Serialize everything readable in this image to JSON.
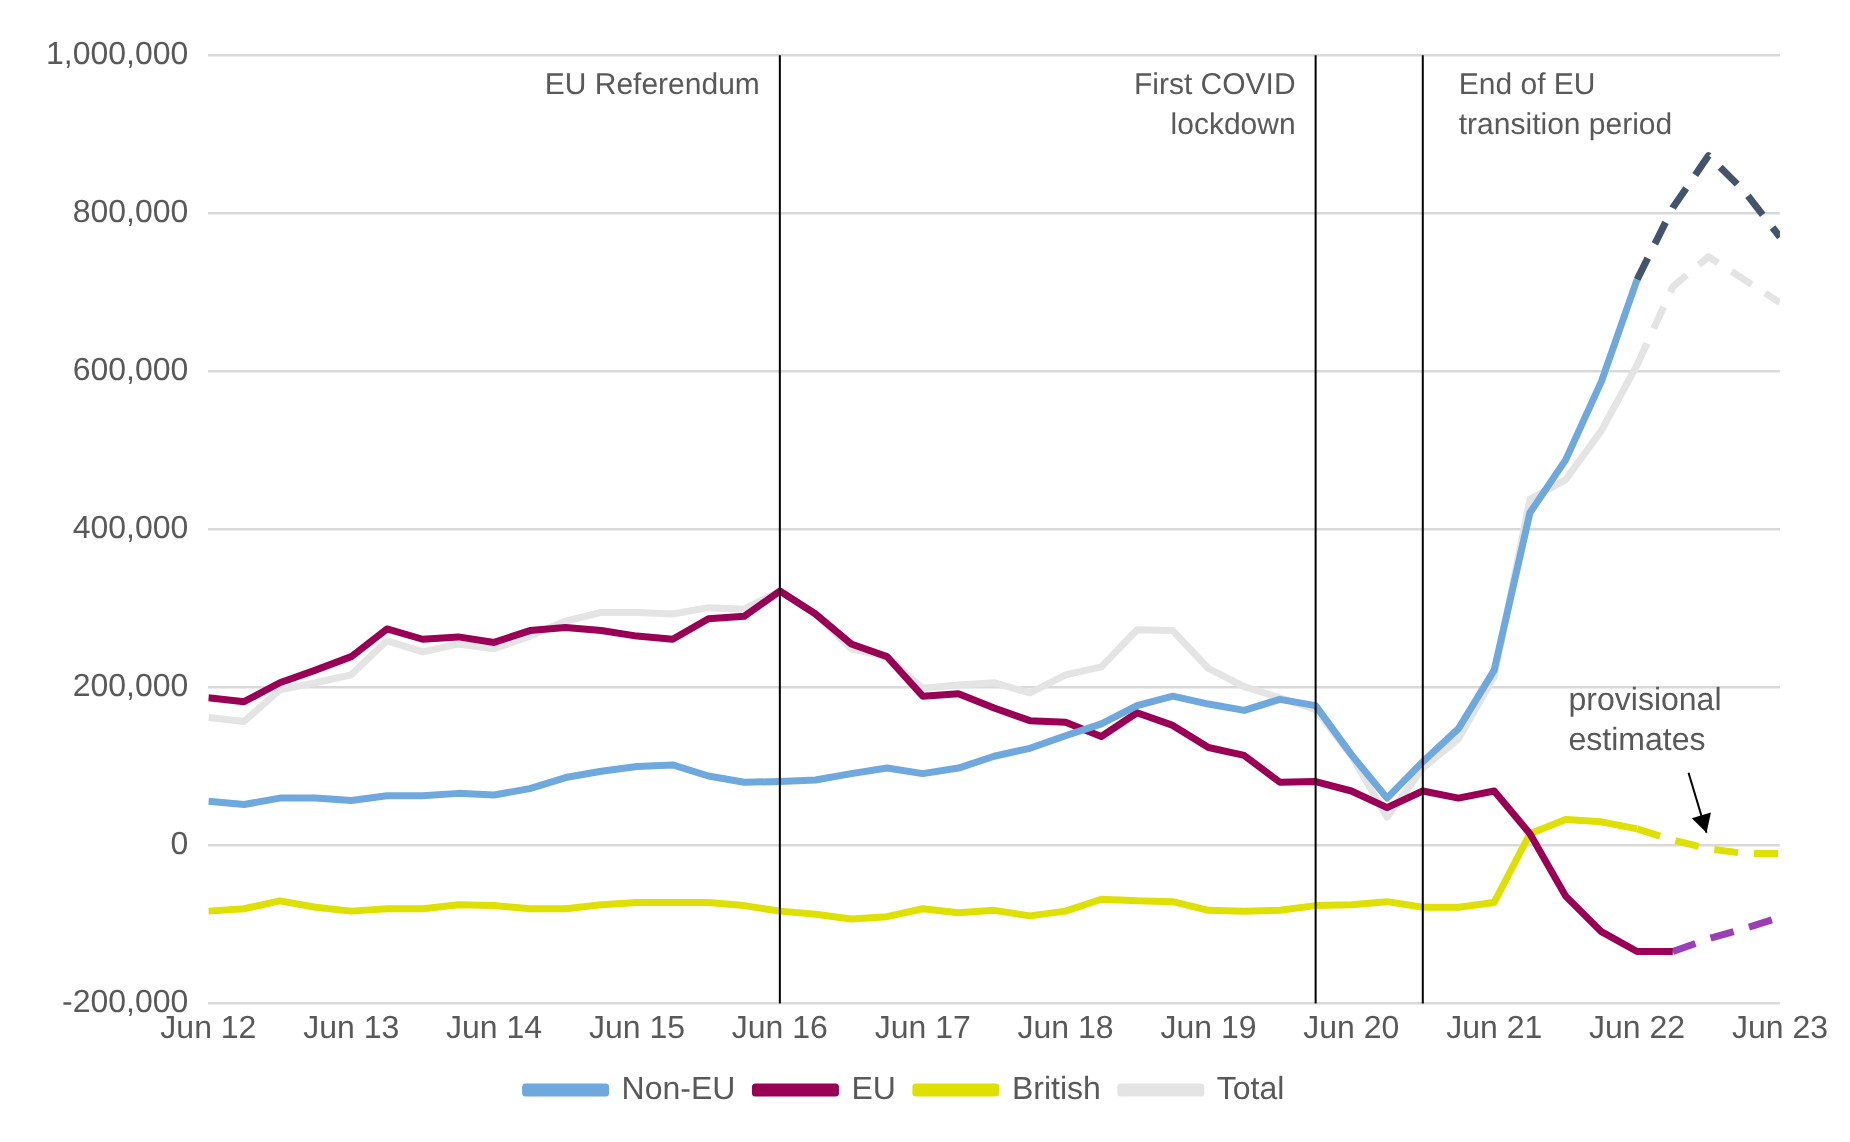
{
  "chart_data": {
    "type": "line",
    "x": [
      "2012-06",
      "2012-09",
      "2012-12",
      "2013-03",
      "2013-06",
      "2013-09",
      "2013-12",
      "2014-03",
      "2014-06",
      "2014-09",
      "2014-12",
      "2015-03",
      "2015-06",
      "2015-09",
      "2015-12",
      "2016-03",
      "2016-06",
      "2016-09",
      "2016-12",
      "2017-03",
      "2017-06",
      "2017-09",
      "2017-12",
      "2018-03",
      "2018-06",
      "2018-09",
      "2018-12",
      "2019-03",
      "2019-06",
      "2019-09",
      "2019-12",
      "2020-03",
      "2020-06",
      "2020-09",
      "2020-12",
      "2021-03",
      "2021-06",
      "2021-09",
      "2021-12",
      "2022-03",
      "2022-06",
      "2022-09",
      "2022-12",
      "2023-03",
      "2023-06"
    ],
    "series": [
      {
        "name": "Non-EU",
        "color": "#6fa8dc",
        "values": [
          56000,
          52000,
          60000,
          60000,
          57000,
          63000,
          63000,
          66000,
          64000,
          72000,
          86000,
          94000,
          100000,
          102000,
          88000,
          80000,
          81000,
          83000,
          91000,
          98000,
          91000,
          98000,
          113000,
          123000,
          139000,
          154000,
          177000,
          189000,
          179000,
          171000,
          185000,
          177000,
          115000,
          60000,
          106000,
          148000,
          222000,
          421000,
          488000,
          587000,
          716000,
          null,
          null,
          null,
          null
        ]
      },
      {
        "name": "EU",
        "color": "#990055",
        "values": [
          187000,
          182000,
          206000,
          222000,
          239000,
          274000,
          261000,
          264000,
          257000,
          272000,
          276000,
          272000,
          265000,
          261000,
          287000,
          290000,
          322000,
          293000,
          255000,
          239000,
          189000,
          192000,
          174000,
          158000,
          156000,
          138000,
          168000,
          152000,
          124000,
          114000,
          80000,
          81000,
          69000,
          48000,
          69000,
          60000,
          69000,
          15000,
          -64000,
          -109000,
          -134000,
          -134000,
          null,
          null,
          null
        ]
      },
      {
        "name": "British",
        "color": "#dde000",
        "values": [
          -83000,
          -80000,
          -70000,
          -78000,
          -83000,
          -80000,
          -80000,
          -75000,
          -76000,
          -80000,
          -80000,
          -75000,
          -72000,
          -72000,
          -72000,
          -76000,
          -83000,
          -87000,
          -93000,
          -90000,
          -80000,
          -85000,
          -82000,
          -89000,
          -83000,
          -68000,
          -70000,
          -71000,
          -82000,
          -83000,
          -82000,
          -76000,
          -75000,
          -71000,
          -78000,
          -78000,
          -72000,
          15000,
          33000,
          30000,
          21000,
          null,
          null,
          null,
          null
        ]
      },
      {
        "name": "Total",
        "color": "#e4e4e4",
        "values": [
          162000,
          157000,
          197000,
          206000,
          216000,
          259000,
          245000,
          255000,
          249000,
          265000,
          284000,
          295000,
          295000,
          293000,
          301000,
          299000,
          322000,
          293000,
          249000,
          239000,
          199000,
          203000,
          206000,
          193000,
          216000,
          226000,
          273000,
          272000,
          224000,
          201000,
          187000,
          172000,
          114000,
          36000,
          98000,
          135000,
          214000,
          438000,
          463000,
          525000,
          608000,
          null,
          null,
          null,
          null
        ]
      },
      {
        "color": "#44546a",
        "line_style": "dashed",
        "values": [
          null,
          null,
          null,
          null,
          null,
          null,
          null,
          null,
          null,
          null,
          null,
          null,
          null,
          null,
          null,
          null,
          null,
          null,
          null,
          null,
          null,
          null,
          null,
          null,
          null,
          null,
          null,
          null,
          null,
          null,
          null,
          null,
          null,
          null,
          null,
          null,
          null,
          null,
          null,
          null,
          716000,
          807000,
          873000,
          828000,
          770000
        ]
      },
      {
        "color": "#9a40b4",
        "line_style": "dashed",
        "values": [
          null,
          null,
          null,
          null,
          null,
          null,
          null,
          null,
          null,
          null,
          null,
          null,
          null,
          null,
          null,
          null,
          null,
          null,
          null,
          null,
          null,
          null,
          null,
          null,
          null,
          null,
          null,
          null,
          null,
          null,
          null,
          null,
          null,
          null,
          null,
          null,
          null,
          null,
          null,
          null,
          null,
          -134000,
          -118000,
          -105000,
          -91000
        ]
      },
      {
        "color": "#dde000",
        "line_style": "dashed",
        "values": [
          null,
          null,
          null,
          null,
          null,
          null,
          null,
          null,
          null,
          null,
          null,
          null,
          null,
          null,
          null,
          null,
          null,
          null,
          null,
          null,
          null,
          null,
          null,
          null,
          null,
          null,
          null,
          null,
          null,
          null,
          null,
          null,
          null,
          null,
          null,
          null,
          null,
          null,
          null,
          null,
          21000,
          7000,
          -4000,
          -10000,
          -10000
        ]
      },
      {
        "color": "#e4e4e4",
        "line_style": "dashed",
        "values": [
          null,
          null,
          null,
          null,
          null,
          null,
          null,
          null,
          null,
          null,
          null,
          null,
          null,
          null,
          null,
          null,
          null,
          null,
          null,
          null,
          null,
          null,
          null,
          null,
          null,
          null,
          null,
          null,
          null,
          null,
          null,
          null,
          null,
          null,
          null,
          null,
          null,
          null,
          null,
          null,
          608000,
          707000,
          745000,
          716000,
          687000
        ]
      }
    ],
    "xlim": [
      "2012-06",
      "2023-06"
    ],
    "xticks": [
      {
        "value": "2012-06",
        "label": "Jun 12"
      },
      {
        "value": "2013-06",
        "label": "Jun 13"
      },
      {
        "value": "2014-06",
        "label": "Jun 14"
      },
      {
        "value": "2015-06",
        "label": "Jun 15"
      },
      {
        "value": "2016-06",
        "label": "Jun 16"
      },
      {
        "value": "2017-06",
        "label": "Jun 17"
      },
      {
        "value": "2018-06",
        "label": "Jun 18"
      },
      {
        "value": "2019-06",
        "label": "Jun 19"
      },
      {
        "value": "2020-06",
        "label": "Jun 20"
      },
      {
        "value": "2021-06",
        "label": "Jun 21"
      },
      {
        "value": "2022-06",
        "label": "Jun 22"
      },
      {
        "value": "2023-06",
        "label": "Jun 23"
      }
    ],
    "ylim": [
      -200000,
      1000000
    ],
    "yticks": [
      {
        "value": -200000,
        "label": "-200,000"
      },
      0,
      {
        "value": 200000,
        "label": "200,000"
      },
      {
        "value": 400000,
        "label": "400,000"
      },
      {
        "value": 600000,
        "label": "600,000"
      },
      {
        "value": 800000,
        "label": "800,000"
      },
      {
        "value": 1000000,
        "label": "1,000,000"
      }
    ],
    "ref_lines": [
      {
        "axis": "x",
        "value": "2016-06",
        "label": "EU Referendum",
        "color": "#000000"
      },
      {
        "axis": "x",
        "value": "2020-03",
        "label": "First COVID lockdown",
        "color": "#000000"
      },
      {
        "axis": "x",
        "value": "2020-12",
        "label": "End of EU transition period",
        "color": "#000000"
      }
    ],
    "annotations": [
      {
        "text": "provisional estimates",
        "x": "2022-12",
        "y": -4000
      }
    ],
    "grid": "y",
    "legend": "bottom",
    "marker": "none",
    "line_style": "solid"
  }
}
